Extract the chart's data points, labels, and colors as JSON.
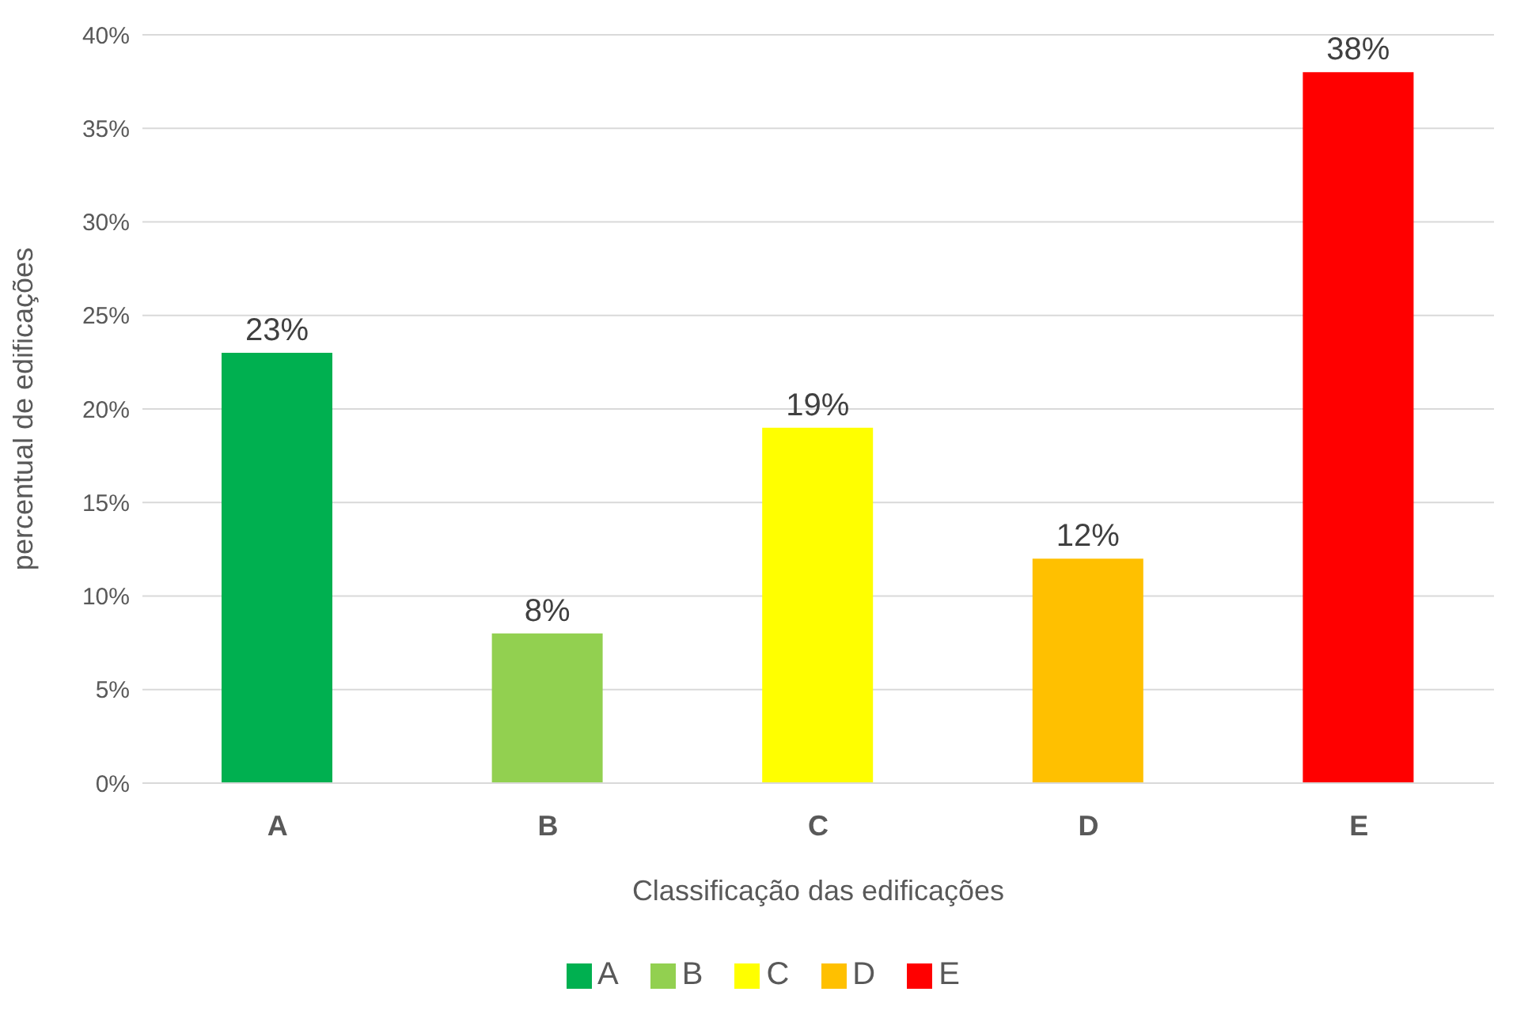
{
  "chart_data": {
    "type": "bar",
    "xlabel": "Classificação das edificações",
    "ylabel": "percentual de edificações",
    "categories": [
      "A",
      "B",
      "C",
      "D",
      "E"
    ],
    "stacked": true,
    "series": [
      {
        "name": "A",
        "color": "#00b050",
        "values": [
          23,
          null,
          null,
          null,
          null
        ],
        "value_labels": [
          "23%",
          null,
          null,
          null,
          null
        ]
      },
      {
        "name": "B",
        "color": "#92d050",
        "values": [
          null,
          8,
          null,
          null,
          null
        ],
        "value_labels": [
          null,
          "8%",
          null,
          null,
          null
        ]
      },
      {
        "name": "C",
        "color": "#ffff00",
        "values": [
          null,
          null,
          19,
          null,
          null
        ],
        "value_labels": [
          null,
          null,
          "19%",
          null,
          null
        ]
      },
      {
        "name": "D",
        "color": "#ffc000",
        "values": [
          null,
          null,
          null,
          12,
          null
        ],
        "value_labels": [
          null,
          null,
          null,
          "12%",
          null
        ]
      },
      {
        "name": "E",
        "color": "#ff0000",
        "values": [
          null,
          null,
          null,
          null,
          38
        ],
        "value_labels": [
          null,
          null,
          null,
          null,
          "38%"
        ]
      }
    ],
    "ylim": [
      0,
      40
    ],
    "yticks": [
      {
        "value": 0,
        "label": "0%"
      },
      {
        "value": 5,
        "label": "5%"
      },
      {
        "value": 10,
        "label": "10%"
      },
      {
        "value": 15,
        "label": "15%"
      },
      {
        "value": 20,
        "label": "20%"
      },
      {
        "value": 25,
        "label": "25%"
      },
      {
        "value": 30,
        "label": "30%"
      },
      {
        "value": 35,
        "label": "35%"
      },
      {
        "value": 40,
        "label": "40%"
      }
    ],
    "grid": "y",
    "legend": "bottom"
  }
}
